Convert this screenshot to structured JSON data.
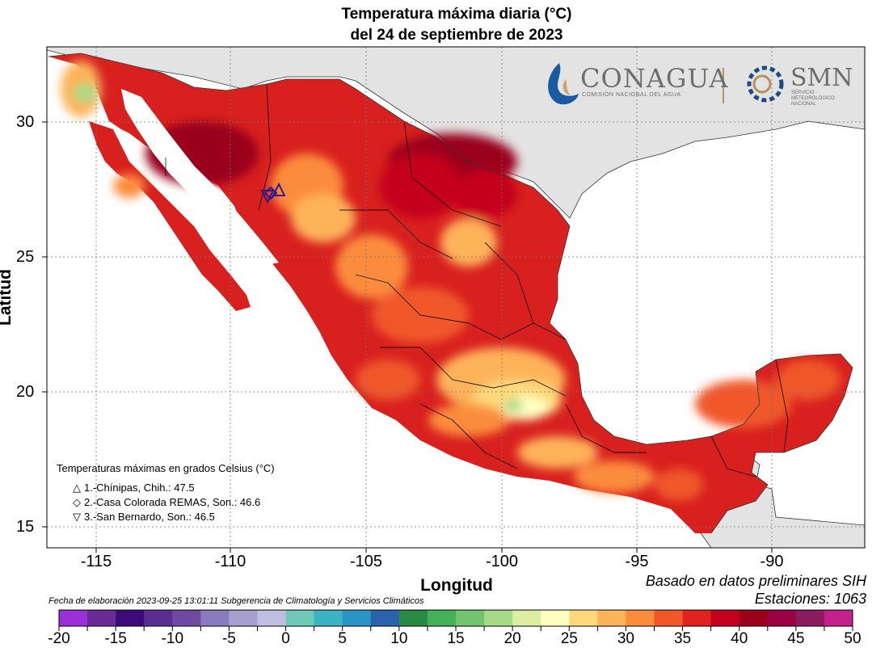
{
  "title_line1": "Temperatura máxima diaria (°C)",
  "title_line2": "del 24 de septiembre de 2023",
  "axes": {
    "xlabel": "Longitud",
    "ylabel": "Latitud",
    "xticks": [
      "-115",
      "-110",
      "-105",
      "-100",
      "-95",
      "-90"
    ],
    "yticks": [
      "30",
      "25",
      "20",
      "15"
    ]
  },
  "logos": {
    "conagua": "CONAGUA",
    "conagua_sub": "COMISIÓN NACIONAL DEL AGUA",
    "smn": "SMN",
    "smn_sub": "SERVICIO METEOROLÓGICO NACIONAL"
  },
  "legend": {
    "title": "Temperaturas máximas en grados Celsius (°C)",
    "items": [
      {
        "symbol": "△",
        "text": "1.-Chínipas, Chih.: 47.5"
      },
      {
        "symbol": "◇",
        "text": "2.-Casa Colorada REMAS, Son.: 46.6"
      },
      {
        "symbol": "▽",
        "text": "3.-San Bernardo, Son.: 46.5"
      }
    ]
  },
  "notes": {
    "source": "Basado en datos preliminares SIH",
    "stations": "Estaciones:  1063",
    "credit": "Fecha de elaboración 2023-09-25 13:01:11 Subgerencia de Climatología y Servicios Climáticos"
  },
  "colorbar": {
    "labels": [
      "-20",
      "-15",
      "-10",
      "-5",
      "0",
      "5",
      "10",
      "15",
      "20",
      "25",
      "30",
      "35",
      "40",
      "45",
      "50"
    ],
    "colors": [
      "#9b30d8",
      "#6a2a93",
      "#3d0a7a",
      "#5a2d91",
      "#6e4aa3",
      "#8a7bbd",
      "#a7a0cf",
      "#bfbde0",
      "#6fc9b8",
      "#3bb3c5",
      "#2a94c4",
      "#2b62ad",
      "#2a8a45",
      "#45b25a",
      "#73c46e",
      "#a7da86",
      "#dcefa0",
      "#ffffc2",
      "#ffd97a",
      "#fdb35a",
      "#fc8c3c",
      "#f0582a",
      "#e0231f",
      "#c4001f",
      "#9a001a",
      "#9b0045",
      "#8a1c5e",
      "#c2218e"
    ]
  },
  "colors": {
    "land_bg": "#e3e3e3",
    "ocean": "#ffffff"
  }
}
